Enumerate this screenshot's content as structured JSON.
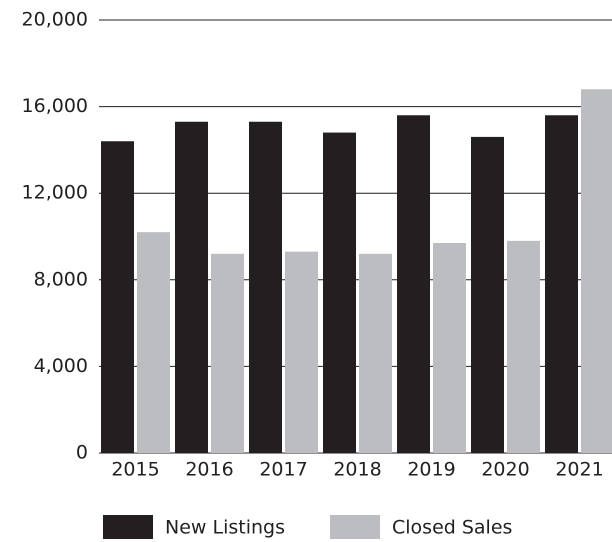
{
  "chart_data": {
    "type": "bar",
    "categories": [
      "2015",
      "2016",
      "2017",
      "2018",
      "2019",
      "2020",
      "2021"
    ],
    "series": [
      {
        "name": "New Listings",
        "color": "#231f20",
        "values": [
          14400,
          15300,
          15300,
          14800,
          15600,
          14600,
          15600
        ]
      },
      {
        "name": "Closed Sales",
        "color": "#bcbdc0",
        "values": [
          10200,
          9200,
          9300,
          9200,
          9700,
          9800,
          16800
        ]
      }
    ],
    "ylim": [
      0,
      20000
    ],
    "yticks": [
      0,
      {
        "value": 4000,
        "label": "4,000"
      },
      {
        "value": 8000,
        "label": "8,000"
      },
      {
        "value": 12000,
        "label": "12,000"
      },
      {
        "value": 16000,
        "label": "16,000"
      },
      {
        "value": 20000,
        "label": "20,000"
      }
    ],
    "grid": true
  }
}
